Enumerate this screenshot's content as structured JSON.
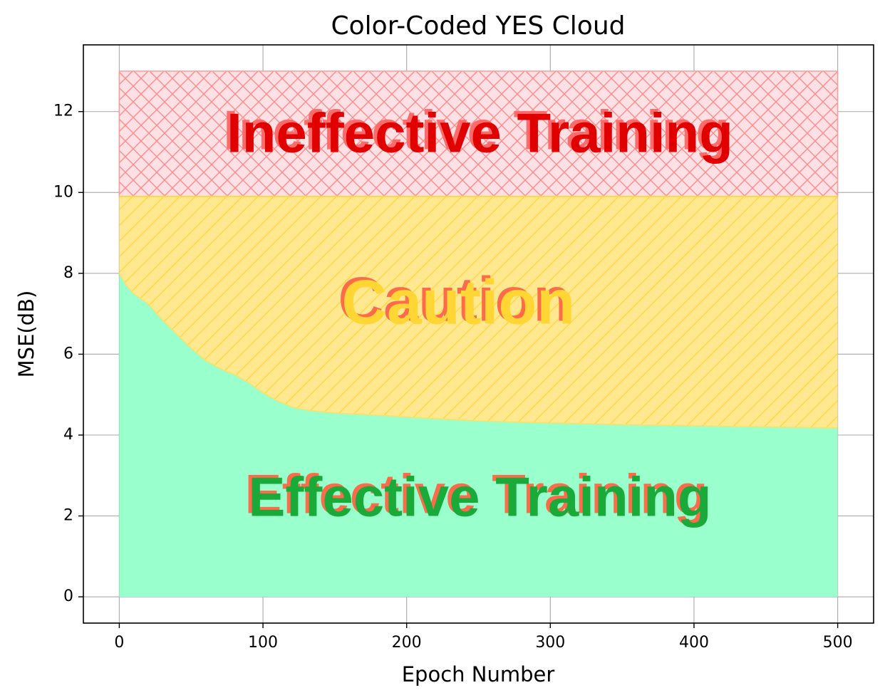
{
  "chart_data": {
    "type": "area",
    "title": "Color-Coded YES Cloud",
    "xlabel": "Epoch Number",
    "ylabel": "MSE(dB)",
    "xlim": [
      -25,
      525
    ],
    "ylim": [
      -0.65,
      13.65
    ],
    "xticks": [
      0,
      100,
      200,
      300,
      400,
      500
    ],
    "yticks": [
      0,
      2,
      4,
      6,
      8,
      10,
      12
    ],
    "grid": true,
    "boundary_curve": {
      "x": [
        0,
        5,
        10,
        20,
        30,
        40,
        50,
        60,
        70,
        80,
        90,
        100,
        110,
        120,
        130,
        140,
        150,
        175,
        200,
        250,
        300,
        350,
        400,
        450,
        500
      ],
      "y": [
        8.0,
        7.7,
        7.5,
        7.25,
        6.85,
        6.5,
        6.15,
        5.85,
        5.65,
        5.5,
        5.3,
        5.05,
        4.85,
        4.7,
        4.62,
        4.58,
        4.55,
        4.5,
        4.45,
        4.35,
        4.3,
        4.26,
        4.23,
        4.2,
        4.18
      ]
    },
    "regions": [
      {
        "label": "Effective Training",
        "lower": "zero",
        "upper": "curve",
        "fill": "#99ffcc",
        "text_color": "#1aaa3a",
        "outline_color": "#ff6b4a",
        "text_x": 250,
        "text_y": 2.4
      },
      {
        "label": "Caution",
        "lower": "curve",
        "upper": 9.9,
        "fill": "#ffe88f",
        "hatch_color": "#ffd84a",
        "text_color": "#ffd633",
        "outline_color": "#ff6b4a",
        "text_x": 235,
        "text_y": 7.2
      },
      {
        "label": "Ineffective Training",
        "lower": 9.9,
        "upper": 13.0,
        "fill": "#ffe0e4",
        "hatch_color": "#ff8080",
        "text_color": "#e00000",
        "outline_color": "#ff6b6b",
        "text_x": 250,
        "text_y": 11.4
      }
    ],
    "x_start": 0,
    "x_end": 500
  }
}
